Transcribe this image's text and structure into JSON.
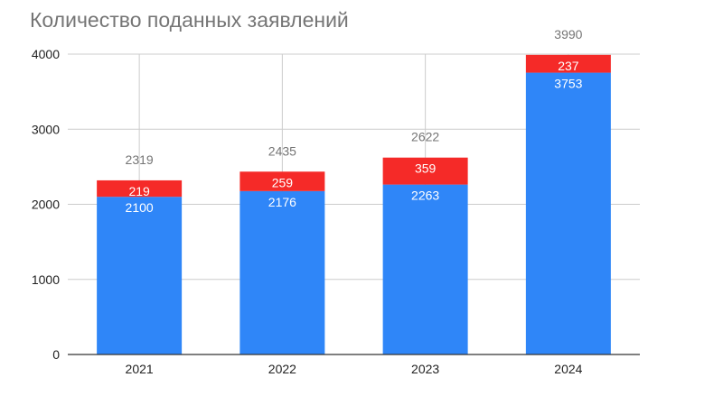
{
  "chart_data": {
    "type": "bar",
    "stacked": true,
    "title": "Количество поданных заявлений",
    "xlabel": "",
    "ylabel": "",
    "categories": [
      "2021",
      "2022",
      "2023",
      "2024"
    ],
    "series": [
      {
        "name": "",
        "color": "#2f86f8",
        "values": [
          2100,
          2176,
          2263,
          3753
        ]
      },
      {
        "name": "",
        "color": "#f52a28",
        "values": [
          219,
          259,
          359,
          237
        ]
      }
    ],
    "totals": [
      2319,
      2435,
      2622,
      3990
    ],
    "ylim": [
      0,
      4000
    ],
    "yticks": [
      0,
      1000,
      2000,
      3000,
      4000
    ],
    "grid": true,
    "legend": "none",
    "colors": {
      "grid": "#cccccc",
      "axis": "#333333",
      "tick_text": "#222222",
      "total_text": "#757575",
      "bar_label": "#ffffff"
    }
  }
}
